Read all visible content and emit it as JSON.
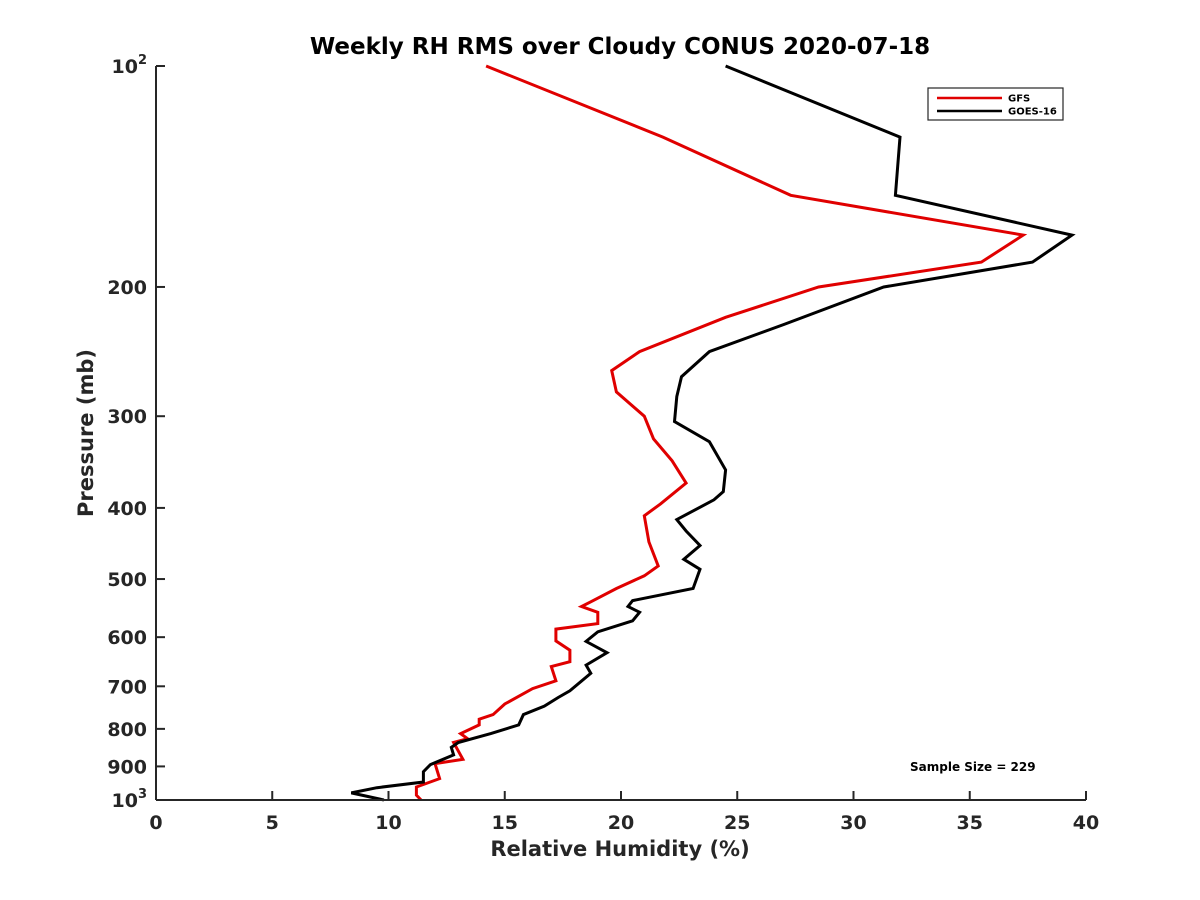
{
  "chart_data": {
    "type": "line",
    "title": "Weekly RH RMS over Cloudy CONUS 2020-07-18",
    "xlabel": "Relative Humidity (%)",
    "ylabel": "Pressure (mb)",
    "xlim": [
      0,
      40
    ],
    "ylim": [
      100,
      1000
    ],
    "y_scale": "log",
    "y_reversed": true,
    "x_ticks": [
      0,
      5,
      10,
      15,
      20,
      25,
      30,
      35,
      40
    ],
    "y_ticks": [
      100,
      200,
      300,
      400,
      500,
      600,
      700,
      800,
      900,
      1000
    ],
    "x_tick_labels": [
      "0",
      "5",
      "10",
      "15",
      "20",
      "25",
      "30",
      "35",
      "40"
    ],
    "y_tick_labels": [
      {
        "base": "10",
        "exp": "2"
      },
      {
        "base": "200",
        "exp": ""
      },
      {
        "base": "300",
        "exp": ""
      },
      {
        "base": "400",
        "exp": ""
      },
      {
        "base": "500",
        "exp": ""
      },
      {
        "base": "600",
        "exp": ""
      },
      {
        "base": "700",
        "exp": ""
      },
      {
        "base": "800",
        "exp": ""
      },
      {
        "base": "900",
        "exp": ""
      },
      {
        "base": "10",
        "exp": "3"
      }
    ],
    "legend_position": "top-right",
    "grid": false,
    "annotation": "Sample Size = 229",
    "series": [
      {
        "name": "GFS",
        "color": "#e00000",
        "points": [
          [
            14.2,
            100
          ],
          [
            21.8,
            125
          ],
          [
            27.3,
            150
          ],
          [
            37.3,
            170
          ],
          [
            35.5,
            185
          ],
          [
            28.5,
            200
          ],
          [
            24.5,
            220
          ],
          [
            20.8,
            245
          ],
          [
            19.6,
            260
          ],
          [
            19.8,
            278
          ],
          [
            21.0,
            300
          ],
          [
            21.4,
            322
          ],
          [
            22.2,
            345
          ],
          [
            22.8,
            370
          ],
          [
            21.7,
            395
          ],
          [
            21.0,
            410
          ],
          [
            21.2,
            445
          ],
          [
            21.6,
            480
          ],
          [
            21.0,
            495
          ],
          [
            19.8,
            515
          ],
          [
            18.7,
            537
          ],
          [
            18.3,
            545
          ],
          [
            19.0,
            555
          ],
          [
            19.0,
            575
          ],
          [
            17.2,
            585
          ],
          [
            17.2,
            607
          ],
          [
            17.8,
            625
          ],
          [
            17.8,
            648
          ],
          [
            17.0,
            658
          ],
          [
            17.2,
            688
          ],
          [
            16.2,
            705
          ],
          [
            15.0,
            740
          ],
          [
            14.5,
            765
          ],
          [
            13.9,
            776
          ],
          [
            13.9,
            790
          ],
          [
            13.1,
            812
          ],
          [
            13.4,
            825
          ],
          [
            12.8,
            835
          ],
          [
            13.2,
            880
          ],
          [
            12.0,
            892
          ],
          [
            12.2,
            935
          ],
          [
            11.2,
            960
          ],
          [
            11.2,
            985
          ],
          [
            11.4,
            1000
          ]
        ]
      },
      {
        "name": "GOES-16",
        "color": "#000000",
        "points": [
          [
            24.5,
            100
          ],
          [
            32.0,
            125
          ],
          [
            31.8,
            150
          ],
          [
            39.4,
            170
          ],
          [
            37.7,
            185
          ],
          [
            31.3,
            200
          ],
          [
            27.0,
            225
          ],
          [
            23.8,
            245
          ],
          [
            22.6,
            265
          ],
          [
            22.4,
            282
          ],
          [
            22.3,
            305
          ],
          [
            23.8,
            325
          ],
          [
            24.5,
            355
          ],
          [
            24.4,
            380
          ],
          [
            24.0,
            390
          ],
          [
            22.4,
            415
          ],
          [
            22.8,
            430
          ],
          [
            23.4,
            450
          ],
          [
            22.7,
            470
          ],
          [
            23.4,
            485
          ],
          [
            23.1,
            515
          ],
          [
            20.5,
            535
          ],
          [
            20.3,
            545
          ],
          [
            20.8,
            555
          ],
          [
            20.5,
            570
          ],
          [
            19.0,
            590
          ],
          [
            18.5,
            608
          ],
          [
            19.4,
            630
          ],
          [
            18.5,
            655
          ],
          [
            18.7,
            672
          ],
          [
            17.8,
            710
          ],
          [
            17.3,
            725
          ],
          [
            16.7,
            745
          ],
          [
            15.8,
            765
          ],
          [
            15.6,
            790
          ],
          [
            14.4,
            812
          ],
          [
            13.0,
            835
          ],
          [
            12.7,
            848
          ],
          [
            12.8,
            868
          ],
          [
            11.8,
            895
          ],
          [
            11.5,
            915
          ],
          [
            11.5,
            945
          ],
          [
            9.5,
            962
          ],
          [
            8.4,
            978
          ],
          [
            9.8,
            1000
          ]
        ]
      }
    ]
  }
}
